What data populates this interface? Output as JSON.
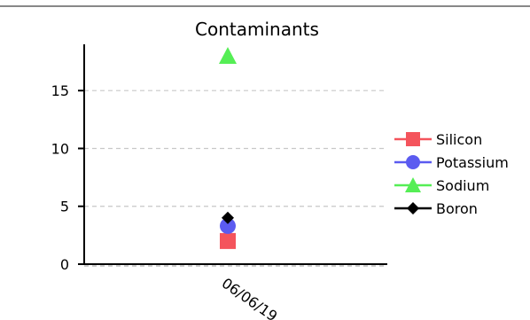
{
  "chart_data": {
    "type": "scatter",
    "title": "Contaminants",
    "xlabel": "",
    "ylabel": "",
    "categories": [
      "06/06/19"
    ],
    "ylim": [
      0,
      19
    ],
    "yticks": [
      0,
      5,
      10,
      15
    ],
    "grid": true,
    "legend_position": "right",
    "series": [
      {
        "name": "Silicon",
        "values": [
          2
        ],
        "color": "#f4545c",
        "marker": "square"
      },
      {
        "name": "Potassium",
        "values": [
          3.3
        ],
        "color": "#5b5bf0",
        "marker": "circle"
      },
      {
        "name": "Sodium",
        "values": [
          18
        ],
        "color": "#55ee55",
        "marker": "triangle"
      },
      {
        "name": "Boron",
        "values": [
          4
        ],
        "color": "#000000",
        "marker": "diamond"
      }
    ]
  }
}
